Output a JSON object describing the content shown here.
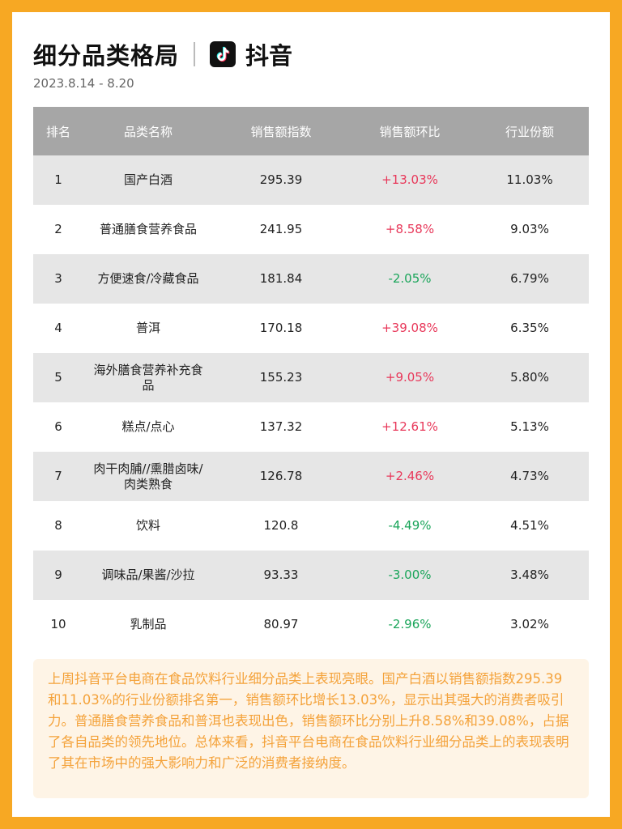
{
  "header": {
    "title": "细分品类格局",
    "brand": "抖音",
    "logo_icon": "tiktok-logo-icon",
    "date_range": "2023.8.14 - 8.20"
  },
  "table": {
    "columns": [
      "排名",
      "品类名称",
      "销售额指数",
      "销售额环比",
      "行业份额"
    ],
    "rows": [
      {
        "rank": "1",
        "name": "国产白酒",
        "index": "295.39",
        "change": "+13.03%",
        "share": "11.03%"
      },
      {
        "rank": "2",
        "name": "普通膳食营养食品",
        "index": "241.95",
        "change": "+8.58%",
        "share": "9.03%"
      },
      {
        "rank": "3",
        "name": "方便速食/冷藏食品",
        "index": "181.84",
        "change": "-2.05%",
        "share": "6.79%"
      },
      {
        "rank": "4",
        "name": "普洱",
        "index": "170.18",
        "change": "+39.08%",
        "share": "6.35%"
      },
      {
        "rank": "5",
        "name": "海外膳食营养补充食品",
        "index": "155.23",
        "change": "+9.05%",
        "share": "5.80%"
      },
      {
        "rank": "6",
        "name": "糕点/点心",
        "index": "137.32",
        "change": "+12.61%",
        "share": "5.13%"
      },
      {
        "rank": "7",
        "name": "肉干肉脯//熏腊卤味/肉类熟食",
        "index": "126.78",
        "change": "+2.46%",
        "share": "4.73%"
      },
      {
        "rank": "8",
        "name": "饮料",
        "index": "120.8",
        "change": "-4.49%",
        "share": "4.51%"
      },
      {
        "rank": "9",
        "name": "调味品/果酱/沙拉",
        "index": "93.33",
        "change": "-3.00%",
        "share": "3.48%"
      },
      {
        "rank": "10",
        "name": "乳制品",
        "index": "80.97",
        "change": "-2.96%",
        "share": "3.02%"
      }
    ]
  },
  "summary": "上周抖音平台电商在食品饮料行业细分品类上表现亮眼。国产白酒以销售额指数295.39和11.03%的行业份额排名第一，销售额环比增长13.03%，显示出其强大的消费者吸引力。普通膳食营养食品和普洱也表现出色，销售额环比分别上升8.58%和39.08%，占据了各自品类的领先地位。总体来看，抖音平台电商在食品饮料行业细分品类上的表现表明了其在市场中的强大影响力和广泛的消费者接纳度。",
  "colors": {
    "frame": "#f7a823",
    "header_row": "#a6a6a6",
    "stripe": "#e6e6e6",
    "positive": "#e8385a",
    "negative": "#1aa55a",
    "summary_bg": "#fef4e6",
    "summary_text": "#f4a23a"
  }
}
